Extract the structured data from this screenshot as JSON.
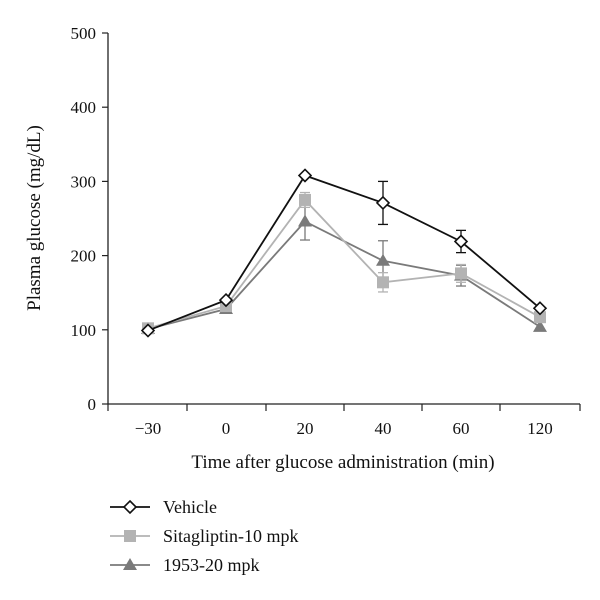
{
  "chart_data": {
    "type": "line",
    "title": "",
    "xlabel": "Time after glucose administration (min)",
    "ylabel": "Plasma glucose (mg/dL)",
    "categories": [
      "−30",
      "0",
      "20",
      "40",
      "60",
      "120"
    ],
    "ylim": [
      0,
      500
    ],
    "yticks": [
      "0",
      "100",
      "200",
      "300",
      "400",
      "500"
    ],
    "grid": false,
    "legend_position": "bottom-left",
    "series": [
      {
        "name": "Vehicle",
        "marker": "diamond-open",
        "color": "#111111",
        "values": [
          99,
          140,
          308,
          271,
          219,
          129
        ],
        "errors": [
          0,
          0,
          0,
          29,
          15,
          0
        ]
      },
      {
        "name": "Sitagliptin-10 mpk",
        "marker": "square",
        "color": "#b3b3b3",
        "values": [
          102,
          132,
          275,
          164,
          176,
          117
        ],
        "errors": [
          0,
          0,
          10,
          13,
          12,
          0
        ]
      },
      {
        "name": "1953-20 mpk",
        "marker": "triangle",
        "color": "#7a7a7a",
        "values": [
          101,
          128,
          246,
          193,
          173,
          104
        ],
        "errors": [
          0,
          0,
          25,
          27,
          14,
          0
        ]
      }
    ]
  }
}
